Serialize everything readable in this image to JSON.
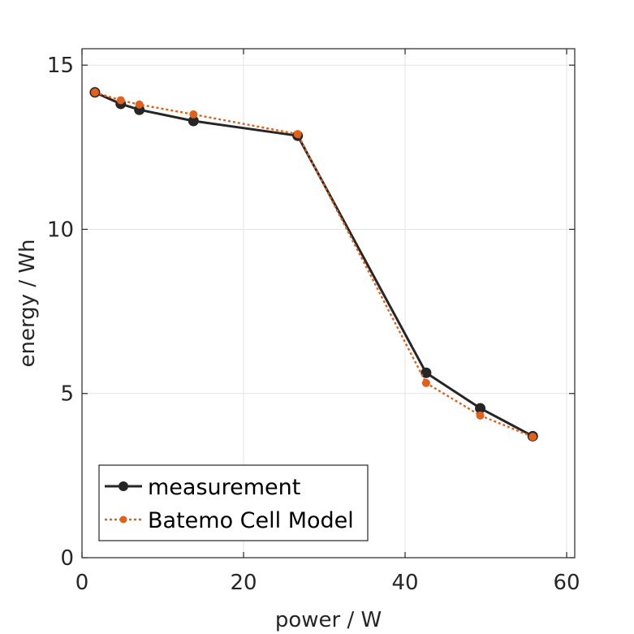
{
  "chart_data": {
    "type": "line",
    "title": "",
    "xlabel": "power / W",
    "ylabel": "energy / Wh",
    "xlim": [
      0,
      61
    ],
    "ylim": [
      0,
      15.5
    ],
    "xticks": [
      0,
      20,
      40,
      60
    ],
    "yticks": [
      0,
      5,
      10,
      15
    ],
    "xtick_labels": [
      "0",
      "20",
      "40",
      "60"
    ],
    "ytick_labels": [
      "0",
      "5",
      "10",
      "15"
    ],
    "grid": true,
    "legend_position": "bottom-left",
    "series": [
      {
        "name": "measurement",
        "color": "#262626",
        "line_style": "solid",
        "marker": "circle",
        "x": [
          1.6,
          4.8,
          7.1,
          13.8,
          26.7,
          42.6,
          49.3,
          55.8
        ],
        "y": [
          14.17,
          13.82,
          13.64,
          13.3,
          12.85,
          5.63,
          4.55,
          3.7
        ]
      },
      {
        "name": "Batemo Cell Model",
        "color": "#e0601c",
        "line_style": "dotted",
        "marker": "circle",
        "x": [
          1.6,
          4.8,
          7.1,
          13.8,
          26.7,
          42.6,
          49.3,
          55.8
        ],
        "y": [
          14.17,
          13.93,
          13.8,
          13.5,
          12.9,
          5.32,
          4.33,
          3.68
        ]
      }
    ]
  }
}
